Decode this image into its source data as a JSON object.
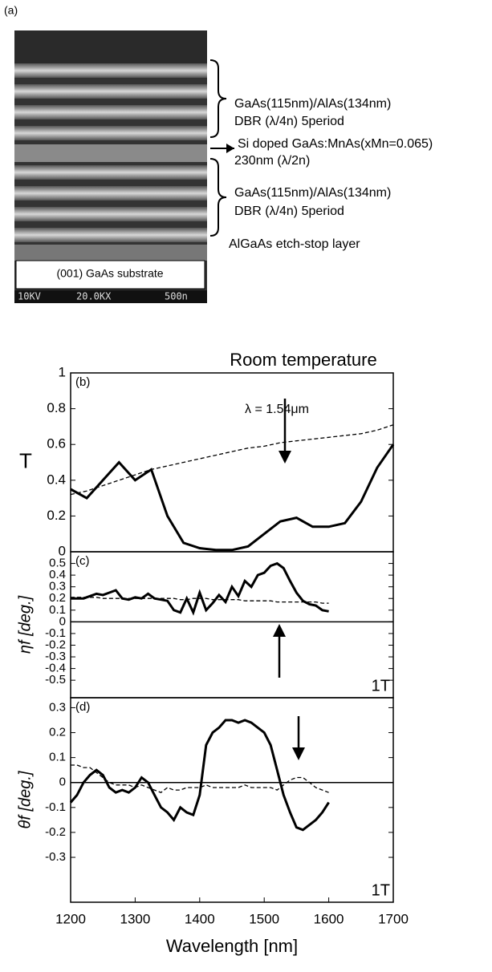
{
  "panel_a": {
    "label": "(a)",
    "substrate": "(001) GaAs substrate",
    "sem_info": [
      "10KV",
      "20.0KX",
      "500n"
    ],
    "annotations": [
      "GaAs(115nm)/AlAs(134nm)",
      "DBR (λ/4n) 5period",
      "Si doped GaAs:MnAs(xMn=0.065)",
      "230nm (λ/2n)",
      "GaAs(115nm)/AlAs(134nm)",
      "DBR (λ/4n) 5period",
      "AlGaAs etch-stop layer"
    ]
  },
  "chart_data": [
    {
      "type": "line",
      "title": "Room temperature",
      "panel_label": "(b)",
      "ylabel": "T",
      "annotation": "λ = 1.54μm",
      "x": [
        1200,
        1225,
        1250,
        1275,
        1300,
        1325,
        1350,
        1375,
        1400,
        1425,
        1450,
        1475,
        1500,
        1525,
        1550,
        1575,
        1600,
        1625,
        1650,
        1675,
        1700
      ],
      "series": [
        {
          "color": "#000000",
          "style": "solid",
          "values": [
            0.35,
            0.3,
            0.4,
            0.5,
            0.4,
            0.46,
            0.2,
            0.05,
            0.02,
            0.01,
            0.01,
            0.03,
            0.1,
            0.17,
            0.19,
            0.14,
            0.14,
            0.16,
            0.28,
            0.47,
            0.6
          ]
        },
        {
          "color": "#000000",
          "style": "dashed",
          "values": [
            0.32,
            0.34,
            0.37,
            0.4,
            0.43,
            0.46,
            0.48,
            0.5,
            0.52,
            0.54,
            0.56,
            0.58,
            0.59,
            0.61,
            0.62,
            0.63,
            0.64,
            0.65,
            0.66,
            0.68,
            0.71
          ]
        }
      ],
      "xlim": [
        1200,
        1700
      ],
      "ylim": [
        0,
        1
      ],
      "yticks": [
        0,
        0.2,
        0.4,
        0.6,
        0.8,
        1
      ]
    },
    {
      "type": "line",
      "panel_label": "(c)",
      "ylabel": "ηf [deg.]",
      "annotation": "1T",
      "zero_line": true,
      "x": [
        1200,
        1210,
        1220,
        1230,
        1240,
        1250,
        1260,
        1270,
        1280,
        1290,
        1300,
        1310,
        1320,
        1330,
        1340,
        1350,
        1360,
        1370,
        1380,
        1390,
        1400,
        1410,
        1420,
        1430,
        1440,
        1450,
        1460,
        1470,
        1480,
        1490,
        1500,
        1510,
        1520,
        1530,
        1540,
        1550,
        1560,
        1570,
        1580,
        1590,
        1600
      ],
      "series": [
        {
          "color": "#000000",
          "style": "solid",
          "values": [
            0.2,
            0.2,
            0.2,
            0.22,
            0.24,
            0.23,
            0.25,
            0.27,
            0.2,
            0.19,
            0.21,
            0.2,
            0.24,
            0.2,
            0.19,
            0.18,
            0.1,
            0.08,
            0.2,
            0.08,
            0.25,
            0.1,
            0.16,
            0.23,
            0.17,
            0.3,
            0.22,
            0.35,
            0.3,
            0.4,
            0.42,
            0.48,
            0.5,
            0.46,
            0.35,
            0.25,
            0.18,
            0.15,
            0.14,
            0.1,
            0.09
          ]
        },
        {
          "color": "#000000",
          "style": "dashed",
          "values": [
            0.21,
            0.21,
            0.21,
            0.21,
            0.21,
            0.2,
            0.2,
            0.2,
            0.2,
            0.2,
            0.2,
            0.2,
            0.2,
            0.2,
            0.2,
            0.2,
            0.2,
            0.19,
            0.19,
            0.2,
            0.2,
            0.2,
            0.19,
            0.19,
            0.19,
            0.19,
            0.19,
            0.18,
            0.18,
            0.18,
            0.18,
            0.18,
            0.17,
            0.17,
            0.17,
            0.17,
            0.17,
            0.17,
            0.17,
            0.16,
            0.16
          ]
        }
      ],
      "xlim": [
        1200,
        1700
      ],
      "ylim": [
        -0.65,
        0.6
      ],
      "yticks": [
        -0.5,
        -0.4,
        -0.3,
        -0.2,
        -0.1,
        0,
        0.1,
        0.2,
        0.3,
        0.4,
        0.5
      ]
    },
    {
      "type": "line",
      "panel_label": "(d)",
      "ylabel": "θf [deg.]",
      "annotation": "1T",
      "zero_line": true,
      "xlabel": "Wavelength [nm]",
      "x": [
        1200,
        1210,
        1220,
        1230,
        1240,
        1250,
        1260,
        1270,
        1280,
        1290,
        1300,
        1310,
        1320,
        1330,
        1340,
        1350,
        1360,
        1370,
        1380,
        1390,
        1400,
        1410,
        1420,
        1430,
        1440,
        1450,
        1460,
        1470,
        1480,
        1490,
        1500,
        1510,
        1520,
        1530,
        1540,
        1550,
        1560,
        1570,
        1580,
        1590,
        1600
      ],
      "series": [
        {
          "color": "#000000",
          "style": "solid",
          "values": [
            -0.08,
            -0.05,
            0,
            0.03,
            0.05,
            0.03,
            -0.02,
            -0.04,
            -0.03,
            -0.04,
            -0.02,
            0.02,
            0,
            -0.05,
            -0.1,
            -0.12,
            -0.15,
            -0.1,
            -0.12,
            -0.13,
            -0.05,
            0.15,
            0.2,
            0.22,
            0.25,
            0.25,
            0.24,
            0.25,
            0.24,
            0.22,
            0.2,
            0.15,
            0.05,
            -0.05,
            -0.12,
            -0.18,
            -0.19,
            -0.17,
            -0.15,
            -0.12,
            -0.08
          ]
        },
        {
          "color": "#000000",
          "style": "dashed",
          "values": [
            0.07,
            0.07,
            0.06,
            0.06,
            0.04,
            0.02,
            0,
            -0.01,
            -0.01,
            -0.01,
            -0.02,
            -0.01,
            -0.02,
            -0.03,
            -0.04,
            -0.02,
            -0.03,
            -0.03,
            -0.02,
            -0.02,
            -0.02,
            -0.01,
            -0.02,
            -0.02,
            -0.02,
            -0.02,
            -0.02,
            -0.01,
            -0.02,
            -0.02,
            -0.02,
            -0.02,
            -0.03,
            -0.01,
            0.01,
            0.02,
            0.02,
            0,
            -0.02,
            -0.03,
            -0.04
          ]
        }
      ],
      "xlim": [
        1200,
        1700
      ],
      "ylim": [
        -0.48,
        0.34
      ],
      "yticks": [
        -0.3,
        -0.2,
        -0.1,
        0,
        0.1,
        0.2,
        0.3
      ],
      "xticks": [
        1200,
        1300,
        1400,
        1500,
        1600,
        1700
      ]
    }
  ]
}
